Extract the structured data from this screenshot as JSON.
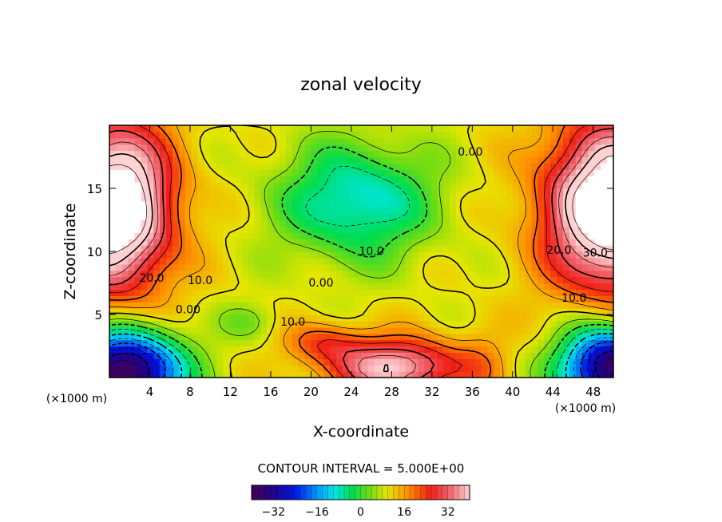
{
  "chart_data": {
    "type": "heatmap",
    "title": "zonal velocity",
    "xlabel": "X-coordinate",
    "ylabel": "Z-coordinate",
    "x_units": "(×1000 m)",
    "xlim": [
      0,
      50
    ],
    "ylim": [
      0,
      20
    ],
    "x_ticks": [
      4,
      8,
      12,
      16,
      20,
      24,
      28,
      32,
      36,
      40,
      44,
      48
    ],
    "y_ticks": [
      5,
      10,
      15
    ],
    "contour_interval_label": "CONTOUR INTERVAL = 5.000E+00",
    "colorbar": {
      "min": -40,
      "max": 40,
      "ticks": [
        -32,
        -16,
        0,
        16,
        32
      ],
      "tick_labels": [
        "−32",
        "−16",
        "0",
        "16",
        "32"
      ]
    },
    "contour_labels": [
      {
        "text": "20.0",
        "x": 4.2,
        "z": 7.6
      },
      {
        "text": "10.0",
        "x": 9.0,
        "z": 7.4
      },
      {
        "text": "0.00",
        "x": 7.8,
        "z": 5.1
      },
      {
        "text": "0.00",
        "x": 21.0,
        "z": 7.2
      },
      {
        "text": "10.0",
        "x": 18.2,
        "z": 4.1
      },
      {
        "text": "10.0",
        "x": 26.0,
        "z": 9.7
      },
      {
        "text": "0.00",
        "x": 35.8,
        "z": 17.6
      },
      {
        "text": "20.0",
        "x": 44.6,
        "z": 9.8
      },
      {
        "text": "30.0",
        "x": 48.2,
        "z": 9.6
      },
      {
        "text": "10.0",
        "x": 46.1,
        "z": 6.0
      }
    ],
    "blobs": [
      {
        "x": 0.5,
        "z": 13.5,
        "sx": 5.5,
        "sz": 6.5,
        "a": 48
      },
      {
        "x": 50.0,
        "z": 13.5,
        "sx": 6.5,
        "sz": 6.5,
        "a": 48
      },
      {
        "x": 1.5,
        "z": 0.5,
        "sx": 5.5,
        "sz": 3.2,
        "a": -52
      },
      {
        "x": 50.0,
        "z": 0.8,
        "sx": 5.0,
        "sz": 3.2,
        "a": -50
      },
      {
        "x": 24.5,
        "z": 14.0,
        "sx": 7.5,
        "sz": 4.5,
        "a": -20
      },
      {
        "x": 28.5,
        "z": 0.8,
        "sx": 6.5,
        "sz": 2.2,
        "a": 30
      },
      {
        "x": 21.5,
        "z": 2.8,
        "sx": 4.0,
        "sz": 1.6,
        "a": 12
      },
      {
        "x": 14.0,
        "z": 4.5,
        "sx": 3.0,
        "sz": 1.5,
        "a": -6
      },
      {
        "x": 37.0,
        "z": 1.5,
        "sx": 2.5,
        "sz": 3.0,
        "a": 5
      }
    ]
  }
}
